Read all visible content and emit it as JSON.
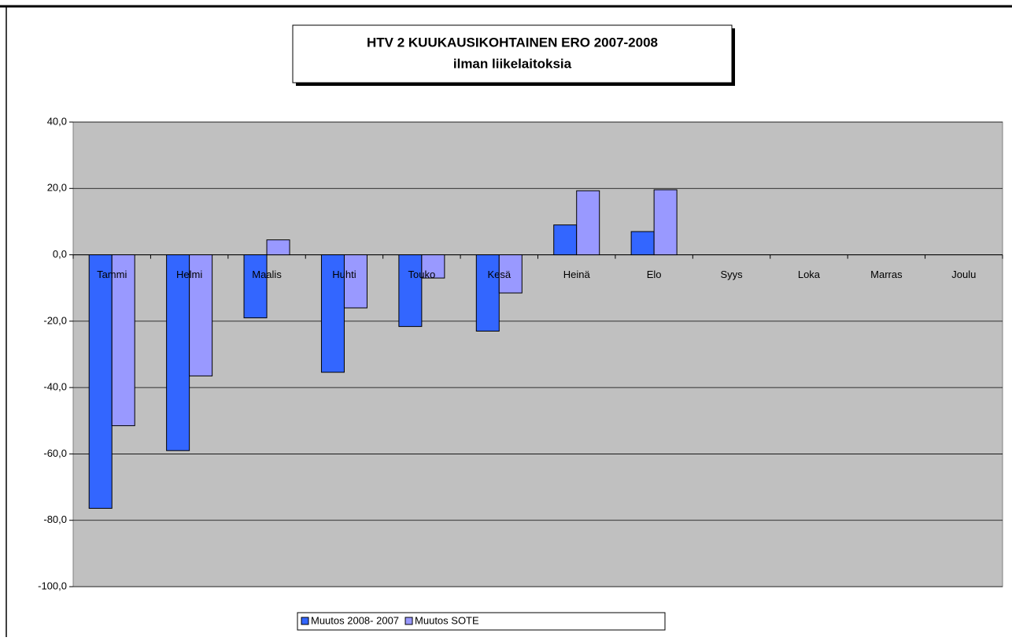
{
  "chart_data": {
    "type": "bar",
    "title": "HTV 2 KUUKAUSIKOHTAINEN ERO  2007-2008",
    "subtitle": "ilman liikelaitoksia",
    "categories": [
      "Tammi",
      "Helmi",
      "Maalis",
      "Huhti",
      "Touko",
      "Kesä",
      "Heinä",
      "Elo",
      "Syys",
      "Loka",
      "Marras",
      "Joulu"
    ],
    "series": [
      {
        "name": "Muutos 2008- 2007",
        "color": "#3366ff",
        "values": [
          -76.4,
          -59.0,
          -19.0,
          -35.4,
          -21.6,
          -23.0,
          9.0,
          7.0,
          null,
          null,
          null,
          null
        ]
      },
      {
        "name": "Muutos SOTE",
        "color": "#9999ff",
        "values": [
          -51.5,
          -36.5,
          4.5,
          -16.0,
          -7.0,
          -11.5,
          19.3,
          19.6,
          null,
          null,
          null,
          null
        ]
      }
    ],
    "ylim": [
      -100,
      40
    ],
    "yticks": [
      {
        "value": -100,
        "label": "-100,0"
      },
      {
        "value": -80,
        "label": "-80,0"
      },
      {
        "value": -60,
        "label": "-60,0"
      },
      {
        "value": -40,
        "label": "-40,0"
      },
      {
        "value": -20,
        "label": "-20,0"
      },
      {
        "value": 0,
        "label": "0,0"
      },
      {
        "value": 20,
        "label": "20,0"
      },
      {
        "value": 40,
        "label": "40,0"
      }
    ],
    "grid": true,
    "legend": "bottom"
  }
}
